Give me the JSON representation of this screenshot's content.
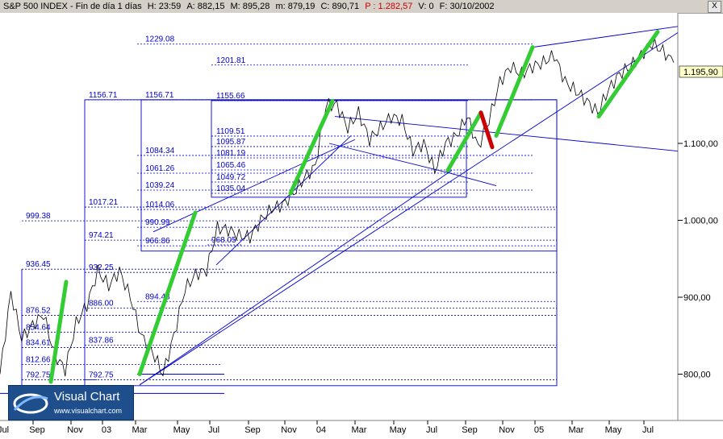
{
  "header": {
    "title": "S&P 500 INDEX - Fin de día 1 días",
    "high": "H: 23:59",
    "open": "A: 882,15",
    "max": "M: 895,28",
    "min": "m: 879,19",
    "close": "C: 890,71",
    "p": "P : 1.282,57",
    "volume": "V: 0",
    "date": "F: 30/10/2002",
    "close_symbol": "X"
  },
  "logo": {
    "title": "Visual Chart",
    "url": "www.visualchart.com"
  },
  "colors": {
    "line": "#000000",
    "trend": "#0000cc",
    "fib": "#0000cc",
    "green": "#33cc33",
    "red": "#cc0000"
  },
  "chart_data": {
    "type": "line",
    "title": "S&P 500 INDEX",
    "x_axis_labels": [
      "Jul",
      "Sep",
      "Nov",
      "03",
      "Mar",
      "May",
      "Jul",
      "Sep",
      "Nov",
      "04",
      "Mar",
      "May",
      "Jul",
      "Sep",
      "Nov",
      "05",
      "Mar",
      "May",
      "Jul"
    ],
    "y_axis_labels": [
      "1.100,00",
      "1.000,00",
      "900,00",
      "800,00"
    ],
    "ylim": [
      770,
      1250
    ],
    "last_value": "1.195,90",
    "fib_labels": [
      "1229.08",
      "1201.81",
      "1156.71",
      "1156.71",
      "1155.66",
      "1109.51",
      "1095.87",
      "1084.34",
      "1081.19",
      "1065.46",
      "1061.26",
      "1049.72",
      "1039.24",
      "1035.04",
      "1017.21",
      "1014.06",
      "999.38",
      "990.99",
      "974.21",
      "968.05",
      "966.86",
      "936.45",
      "932.25",
      "894.48",
      "886.00",
      "876.52",
      "854.64",
      "837.86",
      "834.61",
      "812.66",
      "792.75",
      "792.75"
    ],
    "grid": false,
    "series": [
      {
        "values": [
          800,
          906,
          846,
          864,
          878,
          826,
          806,
          866,
          890,
          934,
          915,
          934,
          900,
          850,
          830,
          800,
          850,
          910,
          930,
          935,
          990,
          988,
          980,
          978,
          1000,
          1015,
          1020,
          1035,
          1055,
          1070,
          1150,
          1150,
          1120,
          1140,
          1105,
          1120,
          1135,
          1130,
          1090,
          1100,
          1065,
          1100,
          1110,
          1135,
          1095,
          1130,
          1180,
          1200,
          1190,
          1200,
          1205,
          1215,
          1180,
          1168,
          1155,
          1140,
          1170,
          1190,
          1200,
          1215,
          1230,
          1220,
          1205
        ]
      }
    ]
  }
}
